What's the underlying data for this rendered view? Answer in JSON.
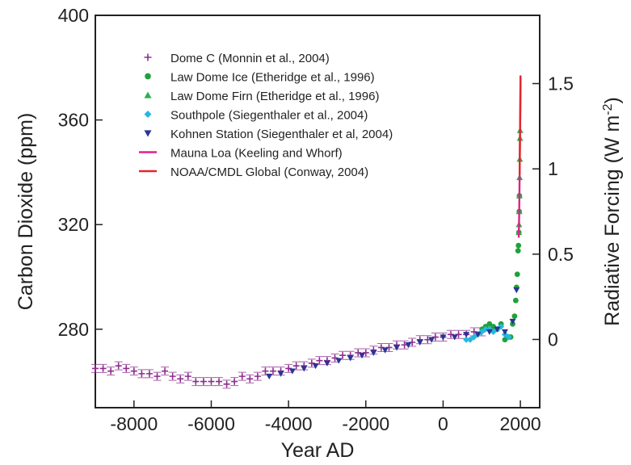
{
  "chart_data": {
    "type": "scatter",
    "xlabel": "Year AD",
    "ylabel_left": "Carbon Dioxide (ppm)",
    "ylabel_right": "Radiative Forcing (W m",
    "ylabel_right_superscript": "-2",
    "ylabel_right_suffix": ")",
    "xlim": [
      -9000,
      2500
    ],
    "ylim_left": [
      250,
      400
    ],
    "ylim_right": [
      -0.4,
      1.9
    ],
    "xticks": [
      -8000,
      -6000,
      -4000,
      -2000,
      0,
      2000
    ],
    "xtick_labels": [
      "-8000",
      "-6000",
      "-4000",
      "-2000",
      "0",
      "2000"
    ],
    "yticks_left": [
      280,
      320,
      360,
      400
    ],
    "ytick_labels_left": [
      "280",
      "320",
      "360",
      "400"
    ],
    "yticks_right": [
      0,
      0.5,
      1,
      1.5
    ],
    "ytick_labels_right": [
      "0",
      "0.5",
      "1",
      "1.5"
    ],
    "legend_position": "top-left",
    "series": [
      {
        "name": "Dome C (Monnin et al., 2004)",
        "marker": "plus",
        "color": "#8e2d8e",
        "x": [
          -9000,
          -8800,
          -8600,
          -8400,
          -8200,
          -8000,
          -7800,
          -7600,
          -7400,
          -7200,
          -7000,
          -6800,
          -6600,
          -6400,
          -6200,
          -6000,
          -5800,
          -5600,
          -5400,
          -5200,
          -5000,
          -4800,
          -4600,
          -4400,
          -4200,
          -4000,
          -3800,
          -3600,
          -3400,
          -3200,
          -3000,
          -2800,
          -2600,
          -2400,
          -2200,
          -2000,
          -1800,
          -1600,
          -1400,
          -1200,
          -1000,
          -800,
          -600,
          -400,
          -200,
          0,
          200,
          400,
          600,
          800,
          1000
        ],
        "y": [
          265,
          265,
          264,
          266,
          265,
          264,
          263,
          263,
          262,
          264,
          262,
          261,
          262,
          260,
          260,
          260,
          260,
          259,
          260,
          262,
          261,
          262,
          264,
          264,
          264,
          265,
          266,
          266,
          267,
          268,
          268,
          269,
          270,
          270,
          271,
          271,
          272,
          273,
          273,
          274,
          274,
          275,
          276,
          276,
          277,
          277,
          278,
          278,
          278,
          279,
          279
        ]
      },
      {
        "name": "Law Dome Ice (Etheridge et al., 1996)",
        "marker": "circle",
        "color": "#1fa23a",
        "x": [
          1010,
          1100,
          1200,
          1300,
          1400,
          1500,
          1600,
          1650,
          1700,
          1750,
          1800,
          1850,
          1880,
          1900,
          1920,
          1940,
          1950,
          1960,
          1970,
          1975
        ],
        "y": [
          280,
          281,
          282,
          281,
          280,
          282,
          276,
          277,
          277,
          277,
          282,
          285,
          291,
          296,
          301,
          310,
          312,
          317,
          325,
          331
        ]
      },
      {
        "name": "Law Dome Firn (Etheridge et al., 1996)",
        "marker": "triangle-up",
        "color": "#2bb04a",
        "x": [
          1960,
          1965,
          1970,
          1975,
          1980,
          1985,
          1990,
          1993
        ],
        "y": [
          317,
          320,
          325,
          331,
          338,
          345,
          353,
          356
        ]
      },
      {
        "name": "Southpole (Siegenthaler et al., 2004)",
        "marker": "diamond",
        "color": "#25b8e0",
        "x": [
          600,
          700,
          800,
          900,
          1000,
          1100,
          1200,
          1300,
          1400,
          1500,
          1600,
          1700
        ],
        "y": [
          276,
          276,
          277,
          278,
          279,
          280,
          280,
          279,
          280,
          281,
          278,
          277
        ]
      },
      {
        "name": "Kohnen Station (Siegenthaler et al, 2004)",
        "marker": "triangle-down",
        "color": "#2a3595",
        "x": [
          -4500,
          -4200,
          -3900,
          -3600,
          -3300,
          -3000,
          -2700,
          -2400,
          -2100,
          -1800,
          -1500,
          -1200,
          -900,
          -600,
          -300,
          0,
          300,
          600,
          900,
          1200,
          1400,
          1600,
          1800,
          1900
        ],
        "y": [
          262,
          263,
          264,
          265,
          266,
          267,
          268,
          269,
          270,
          271,
          272,
          273,
          274,
          275,
          276,
          277,
          277,
          278,
          278,
          279,
          280,
          279,
          283,
          295
        ]
      },
      {
        "name": "Mauna Loa (Keeling and Whorf)",
        "marker": "line",
        "color": "#e0208a",
        "x": [
          1958,
          1965,
          1970,
          1975,
          1980,
          1985,
          1990,
          1995,
          2000,
          2004
        ],
        "y": [
          315,
          320,
          325,
          331,
          338,
          346,
          354,
          360,
          369,
          377
        ]
      },
      {
        "name": "NOAA/CMDL Global  (Conway, 2004)",
        "marker": "line",
        "color": "#e2262b",
        "x": [
          1980,
          1985,
          1990,
          1995,
          2000,
          2004
        ],
        "y": [
          339,
          346,
          354,
          360,
          369,
          377
        ]
      }
    ]
  }
}
